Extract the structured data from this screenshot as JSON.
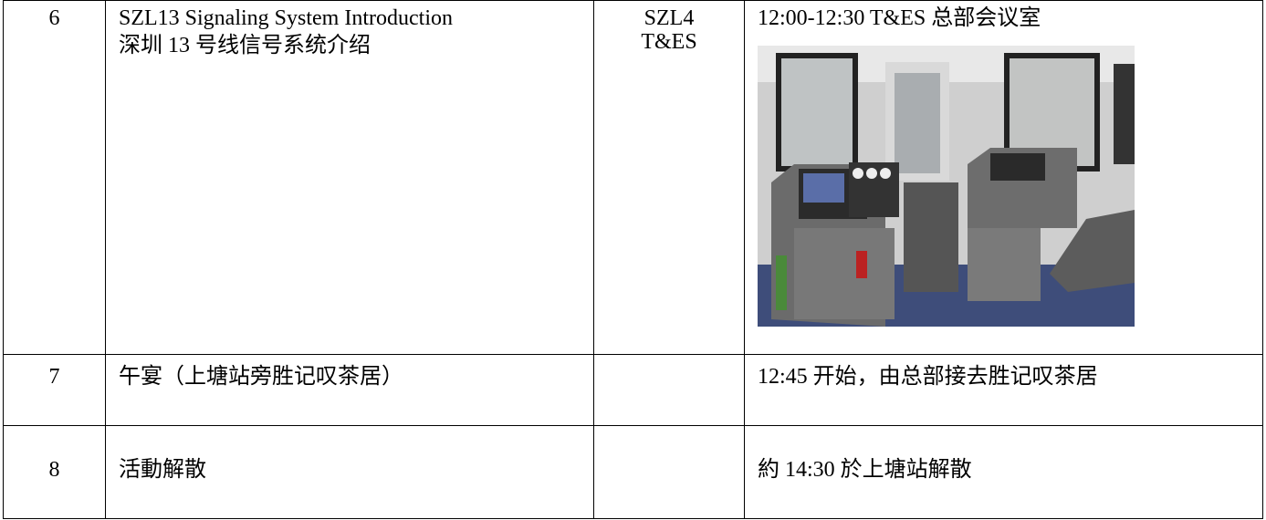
{
  "table": {
    "rows": [
      {
        "number": "6",
        "topic": [
          "SZL13 Signaling System Introduction",
          "深圳 13 号线信号系统介绍"
        ],
        "venue": [
          "SZL4",
          "T&ES"
        ],
        "note": "12:00-12:30 T&ES 总部会议室"
      },
      {
        "number": "7",
        "topic": [
          "午宴（上塘站旁胜记叹茶居）"
        ],
        "note": "12:45 开始，由总部接去胜记叹茶居"
      },
      {
        "number": "8",
        "topic": [
          "活動解散"
        ],
        "note": "約 14:30 於上塘站解散"
      }
    ]
  }
}
